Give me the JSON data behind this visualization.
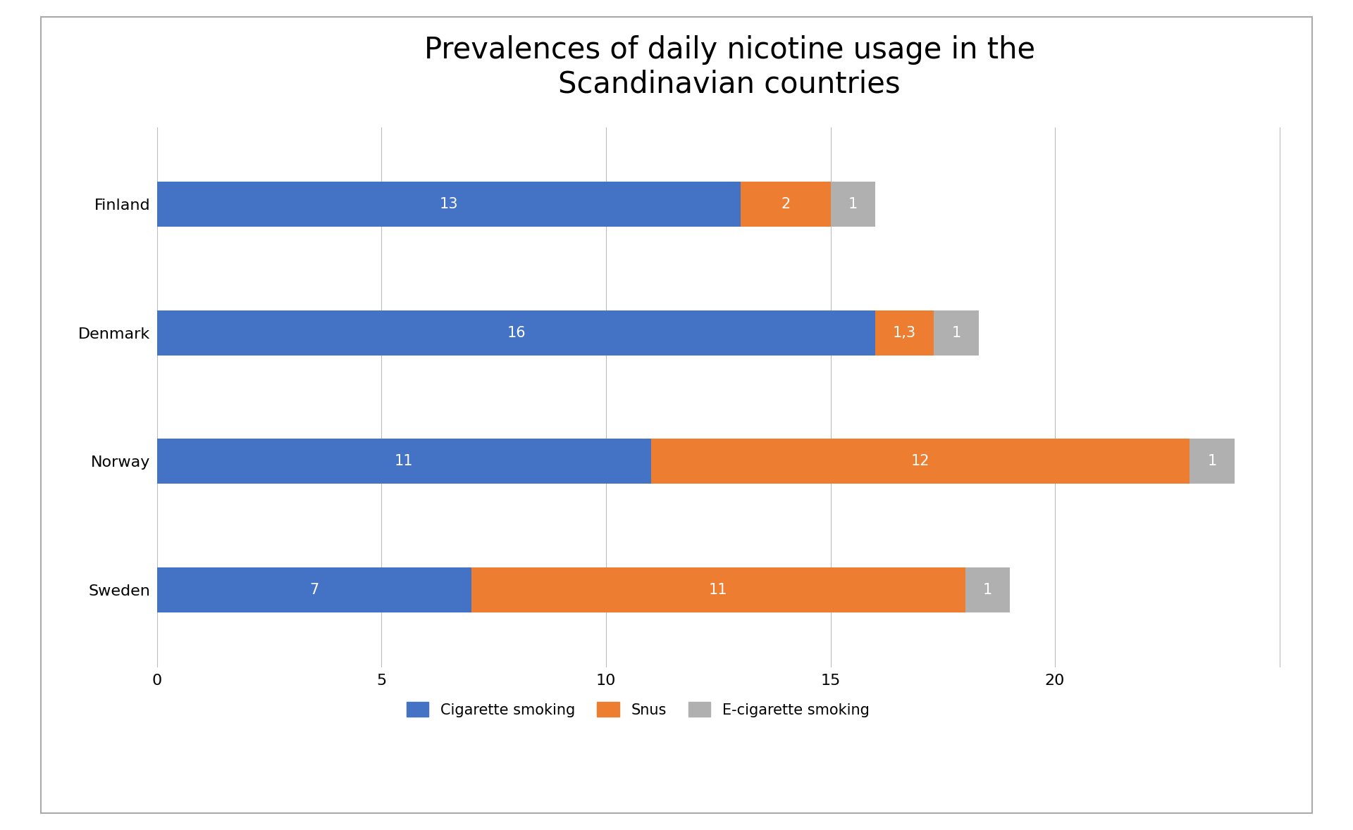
{
  "title": "Prevalences of daily nicotine usage in the\nScandinavian countries",
  "countries": [
    "Finland",
    "Denmark",
    "Norway",
    "Sweden"
  ],
  "cigarette": [
    13,
    16,
    11,
    7
  ],
  "snus": [
    2,
    1.3,
    12,
    11
  ],
  "ecigarette": [
    1,
    1,
    1,
    1
  ],
  "cigarette_labels": [
    "13",
    "16",
    "11",
    "7"
  ],
  "snus_labels": [
    "2",
    "1,3",
    "12",
    "11"
  ],
  "ecigarette_labels": [
    "1",
    "1",
    "1",
    "1"
  ],
  "color_cigarette": "#4472C4",
  "color_snus": "#ED7D31",
  "color_ecigarette": "#B0B0B0",
  "legend_labels": [
    "Cigarette smoking",
    "Snus",
    "E-cigarette smoking"
  ],
  "xlim": [
    0,
    25.5
  ],
  "xticks": [
    0,
    5,
    10,
    15,
    20
  ],
  "bar_height": 0.35,
  "title_fontsize": 30,
  "label_fontsize": 15,
  "tick_fontsize": 16,
  "legend_fontsize": 15,
  "background_color": "#ffffff",
  "border_color": "#aaaaaa",
  "grid_color": "#bbbbbb",
  "grid_linewidth": 0.8,
  "ylabel_fontsize": 18
}
